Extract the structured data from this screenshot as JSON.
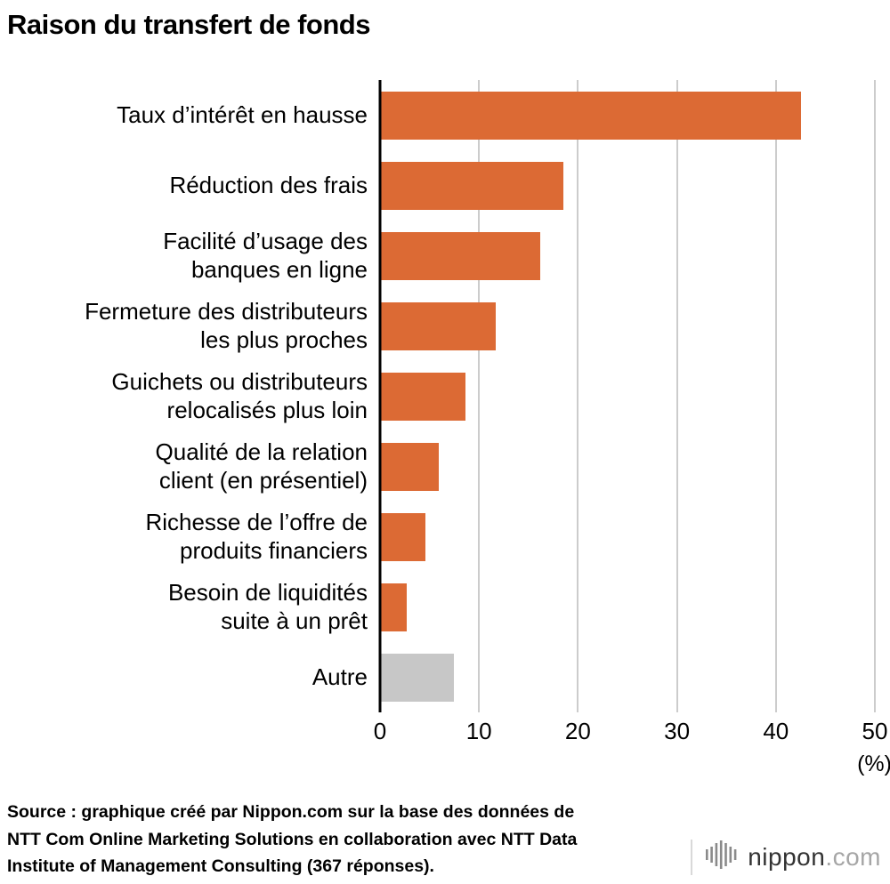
{
  "chart_data": {
    "type": "bar",
    "orientation": "horizontal",
    "title": "Raison du transfert de fonds",
    "categories": [
      "Taux d’intérêt en hausse",
      "Réduction des frais",
      "Facilité d’usage des\nbanques en ligne",
      "Fermeture des distributeurs\nles plus proches",
      "Guichets ou distributeurs\nrelocalisés plus loin",
      "Qualité de la relation\nclient (en présentiel)",
      "Richesse de l’offre de\nproduits financiers",
      "Besoin de liquidités\nsuite à un prêt",
      "Autre"
    ],
    "values": [
      42.5,
      18.5,
      16.2,
      11.7,
      8.6,
      5.9,
      4.6,
      2.7,
      7.5
    ],
    "colors": [
      "#dc6a34",
      "#dc6a34",
      "#dc6a34",
      "#dc6a34",
      "#dc6a34",
      "#dc6a34",
      "#dc6a34",
      "#dc6a34",
      "#c7c7c7"
    ],
    "xlim": [
      0,
      50
    ],
    "x_ticks": [
      0,
      10,
      20,
      30,
      40,
      50
    ],
    "unit_label": "(%)",
    "grid": true,
    "legend": "none",
    "accent_color": "#dc6a34",
    "other_color": "#c7c7c7",
    "gridline_color": "#cccccc",
    "axis_color": "#000000"
  },
  "footer": {
    "source": "Source : graphique créé par Nippon.com sur la base des données de\nNTT Com Online Marketing Solutions en collaboration avec NTT Data\nInstitute of Management Consulting (367 réponses).",
    "logo_nippon": "nippon",
    "logo_com": ".com"
  }
}
